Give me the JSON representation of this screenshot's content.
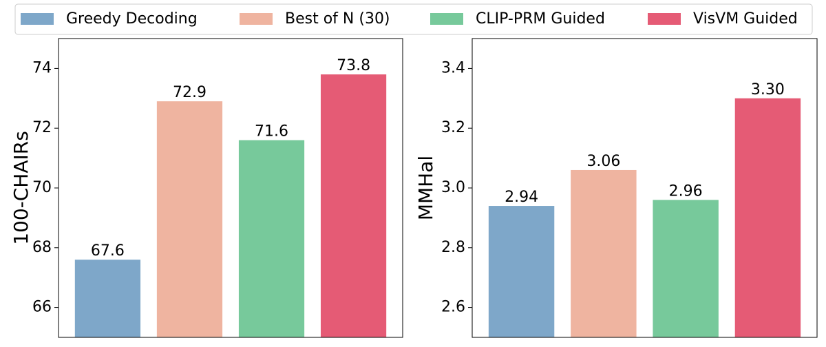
{
  "legend": [
    {
      "name": "Greedy Decoding",
      "color": "#7ea7c9"
    },
    {
      "name": "Best of N (30)",
      "color": "#efb4a0"
    },
    {
      "name": "CLIP-PRM Guided",
      "color": "#77c99b"
    },
    {
      "name": "VisVM Guided",
      "color": "#e55b75"
    }
  ],
  "chart_data": [
    {
      "type": "bar",
      "y_label": "100-CHAIRs",
      "values": [
        67.6,
        72.9,
        71.6,
        73.8
      ],
      "ylim": [
        65,
        75
      ],
      "yticks": [
        66,
        68,
        70,
        72,
        74
      ]
    },
    {
      "type": "bar",
      "y_label": "MMHal",
      "values": [
        2.94,
        3.06,
        2.96,
        3.3
      ],
      "value_labels": [
        "2.94",
        "3.06",
        "2.96",
        "3.30"
      ],
      "ylim": [
        2.5,
        3.5
      ],
      "yticks": [
        2.6,
        2.8,
        {
          "value": 3,
          "label": "3.0"
        },
        3.2,
        3.4
      ]
    }
  ]
}
